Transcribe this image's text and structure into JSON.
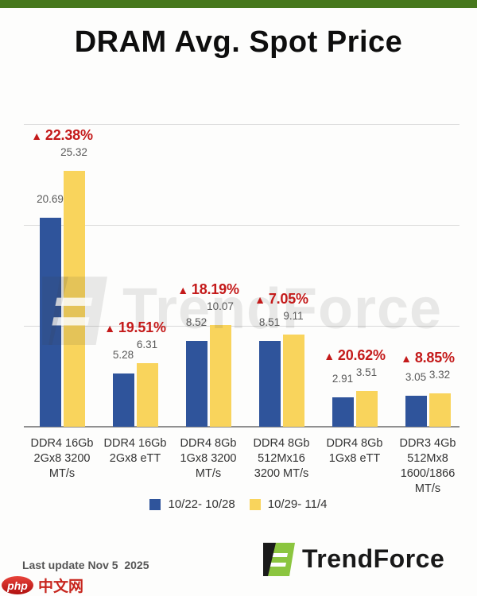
{
  "page": {
    "title": "DRAM Avg. Spot Price"
  },
  "chart_data": {
    "type": "bar",
    "title": "DRAM Avg. Spot Price",
    "categories": [
      "DDR4 16Gb\n2Gx8 3200\nMT/s",
      "DDR4 16Gb\n2Gx8 eTT",
      "DDR4 8Gb\n1Gx8 3200\nMT/s",
      "DDR4 8Gb\n512Mx16\n3200 MT/s",
      "DDR4 8Gb\n1Gx8 eTT",
      "DDR3 4Gb\n512Mx8\n1600/1866\nMT/s"
    ],
    "series": [
      {
        "name": "10/22- 10/28",
        "color": "#2f549b",
        "values": [
          20.69,
          5.28,
          8.52,
          8.51,
          2.91,
          3.05
        ]
      },
      {
        "name": "10/29- 11/4",
        "color": "#f9d45c",
        "values": [
          25.32,
          6.31,
          10.07,
          9.11,
          3.51,
          3.32
        ]
      }
    ],
    "change_annotations": [
      {
        "direction": "up",
        "text": "22.38%"
      },
      {
        "direction": "up",
        "text": "19.51%"
      },
      {
        "direction": "up",
        "text": "18.19%"
      },
      {
        "direction": "up",
        "text": "7.05%"
      },
      {
        "direction": "up",
        "text": "20.62%"
      },
      {
        "direction": "up",
        "text": "8.85%"
      }
    ],
    "annotation_color": "#c41a1a",
    "ylim": [
      0,
      30
    ],
    "gridline_values": [
      0,
      10,
      20,
      30
    ],
    "grid": true,
    "legend_position": "bottom"
  },
  "watermark": {
    "text": "TrendForce"
  },
  "footer": {
    "last_update": "Last update Nov 5  2025",
    "brand": "TrendForce"
  },
  "site_badge": {
    "logo_text": "php",
    "site_name": "中文网"
  }
}
